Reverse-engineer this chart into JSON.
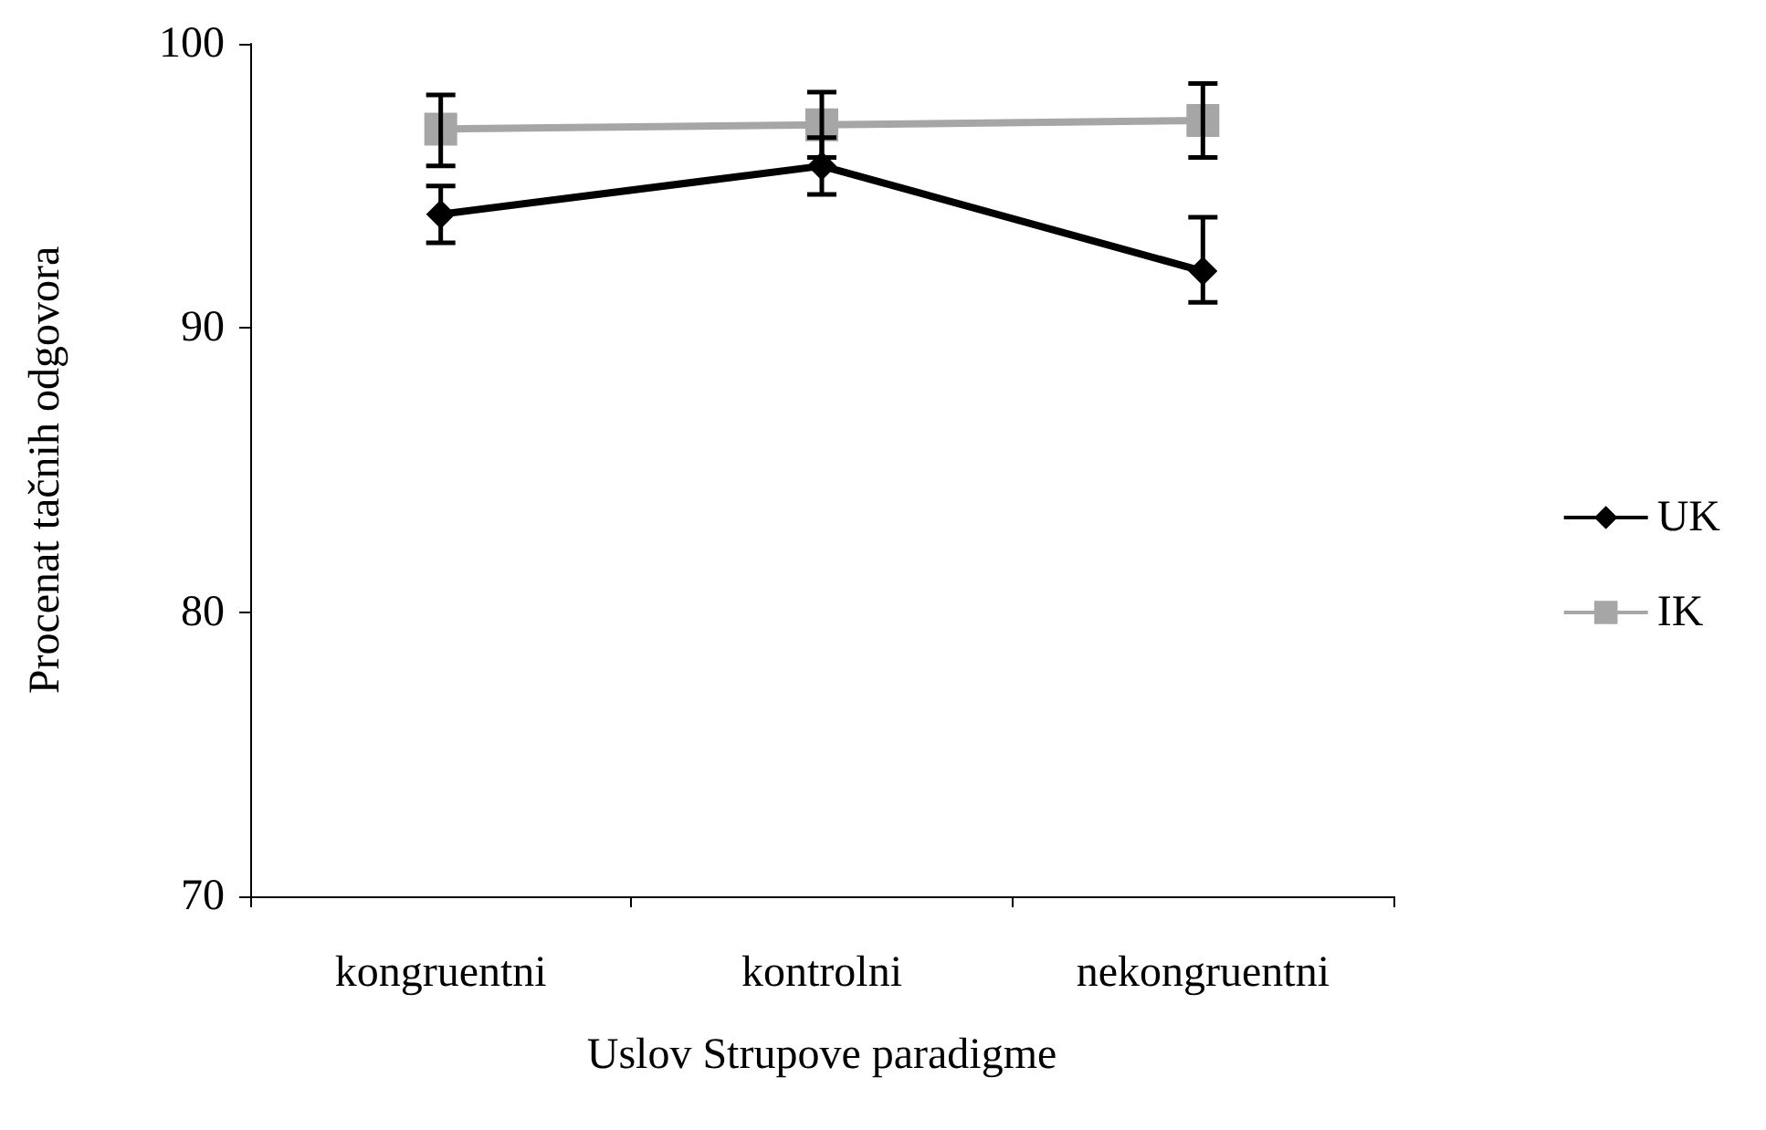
{
  "chart_data": {
    "type": "line",
    "xlabel": "Uslov Strupove paradigme",
    "ylabel": "Procenat tačnih odgovora",
    "categories": [
      "kongruentni",
      "kontrolni",
      "nekongruentni"
    ],
    "series": [
      {
        "name": "UK",
        "color": "#000000",
        "marker": "diamond",
        "values": [
          94.0,
          95.7,
          92.0
        ],
        "errors": [
          [
            93.0,
            95.0
          ],
          [
            94.7,
            96.7
          ],
          [
            90.9,
            93.9
          ]
        ]
      },
      {
        "name": "IK",
        "color": "#a6a6a6",
        "marker": "square",
        "values": [
          97.0,
          97.15,
          97.3
        ],
        "errors": [
          [
            95.7,
            98.2
          ],
          [
            96.0,
            98.3
          ],
          [
            96.0,
            98.6
          ]
        ]
      }
    ],
    "ylim": [
      70,
      100
    ],
    "yticks": [
      70,
      80,
      90,
      100
    ],
    "grid": false,
    "legend": "right"
  }
}
